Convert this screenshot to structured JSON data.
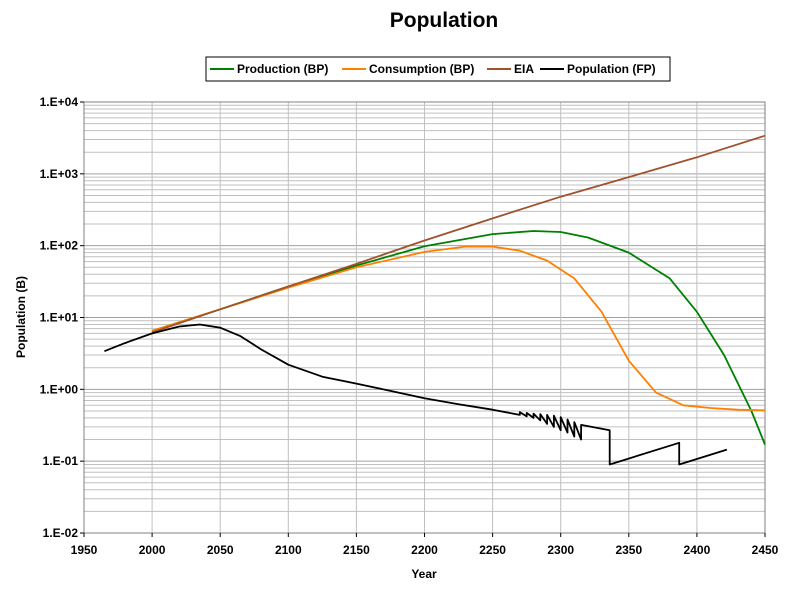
{
  "chart_data": {
    "type": "line",
    "title": "Population",
    "xlabel": "Year",
    "ylabel": "Population (B)",
    "xlim": [
      1950,
      2450
    ],
    "ylim": [
      0.01,
      10000
    ],
    "y_scale": "log",
    "grid": true,
    "legend_placement": "top",
    "x_ticks": [
      "1950",
      "2000",
      "2050",
      "2100",
      "2150",
      "2200",
      "2250",
      "2300",
      "2350",
      "2400",
      "2450"
    ],
    "y_ticks": [
      "1.E-02",
      "1.E-01",
      "1.E+00",
      "1.E+01",
      "1.E+02",
      "1.E+03",
      "1.E+04"
    ],
    "series": [
      {
        "name": "Production (BP)",
        "color": "#008000",
        "x": [
          2000,
          2050,
          2100,
          2150,
          2200,
          2250,
          2280,
          2300,
          2320,
          2350,
          2380,
          2400,
          2420,
          2440,
          2450
        ],
        "y": [
          6.5,
          13,
          27,
          53,
          98,
          145,
          160,
          155,
          130,
          80,
          35,
          12,
          3,
          0.5,
          0.17
        ]
      },
      {
        "name": "Consumption (BP)",
        "color": "#FF8000",
        "x": [
          2000,
          2050,
          2100,
          2150,
          2200,
          2230,
          2250,
          2270,
          2290,
          2310,
          2330,
          2350,
          2370,
          2390,
          2410,
          2430,
          2450
        ],
        "y": [
          6.5,
          13,
          26,
          50,
          82,
          97,
          97,
          85,
          62,
          35,
          12,
          2.5,
          0.9,
          0.6,
          0.55,
          0.52,
          0.51
        ]
      },
      {
        "name": "EIA",
        "color": "#A0522D",
        "x": [
          2000,
          2050,
          2100,
          2150,
          2200,
          2250,
          2300,
          2350,
          2400,
          2450
        ],
        "y": [
          6.2,
          13,
          27,
          56,
          118,
          240,
          480,
          900,
          1700,
          3400
        ]
      },
      {
        "name": "Population (FP)",
        "color": "#000000",
        "x": [
          1965,
          1980,
          2000,
          2020,
          2035,
          2050,
          2065,
          2080,
          2100,
          2125,
          2150,
          2175,
          2200,
          2225,
          2250,
          2265,
          2270,
          2270,
          2275,
          2275,
          2280,
          2280,
          2285,
          2285,
          2290,
          2290,
          2295,
          2295,
          2300,
          2300,
          2305,
          2305,
          2310,
          2310,
          2315,
          2315,
          2336,
          2336,
          2387,
          2387,
          2422
        ],
        "y": [
          3.4,
          4.4,
          6.0,
          7.5,
          8.0,
          7.2,
          5.5,
          3.6,
          2.2,
          1.5,
          1.2,
          0.95,
          0.75,
          0.62,
          0.52,
          0.46,
          0.44,
          0.48,
          0.42,
          0.47,
          0.4,
          0.46,
          0.37,
          0.45,
          0.33,
          0.44,
          0.3,
          0.43,
          0.27,
          0.41,
          0.25,
          0.38,
          0.22,
          0.35,
          0.2,
          0.32,
          0.27,
          0.09,
          0.18,
          0.09,
          0.145
        ]
      }
    ]
  }
}
